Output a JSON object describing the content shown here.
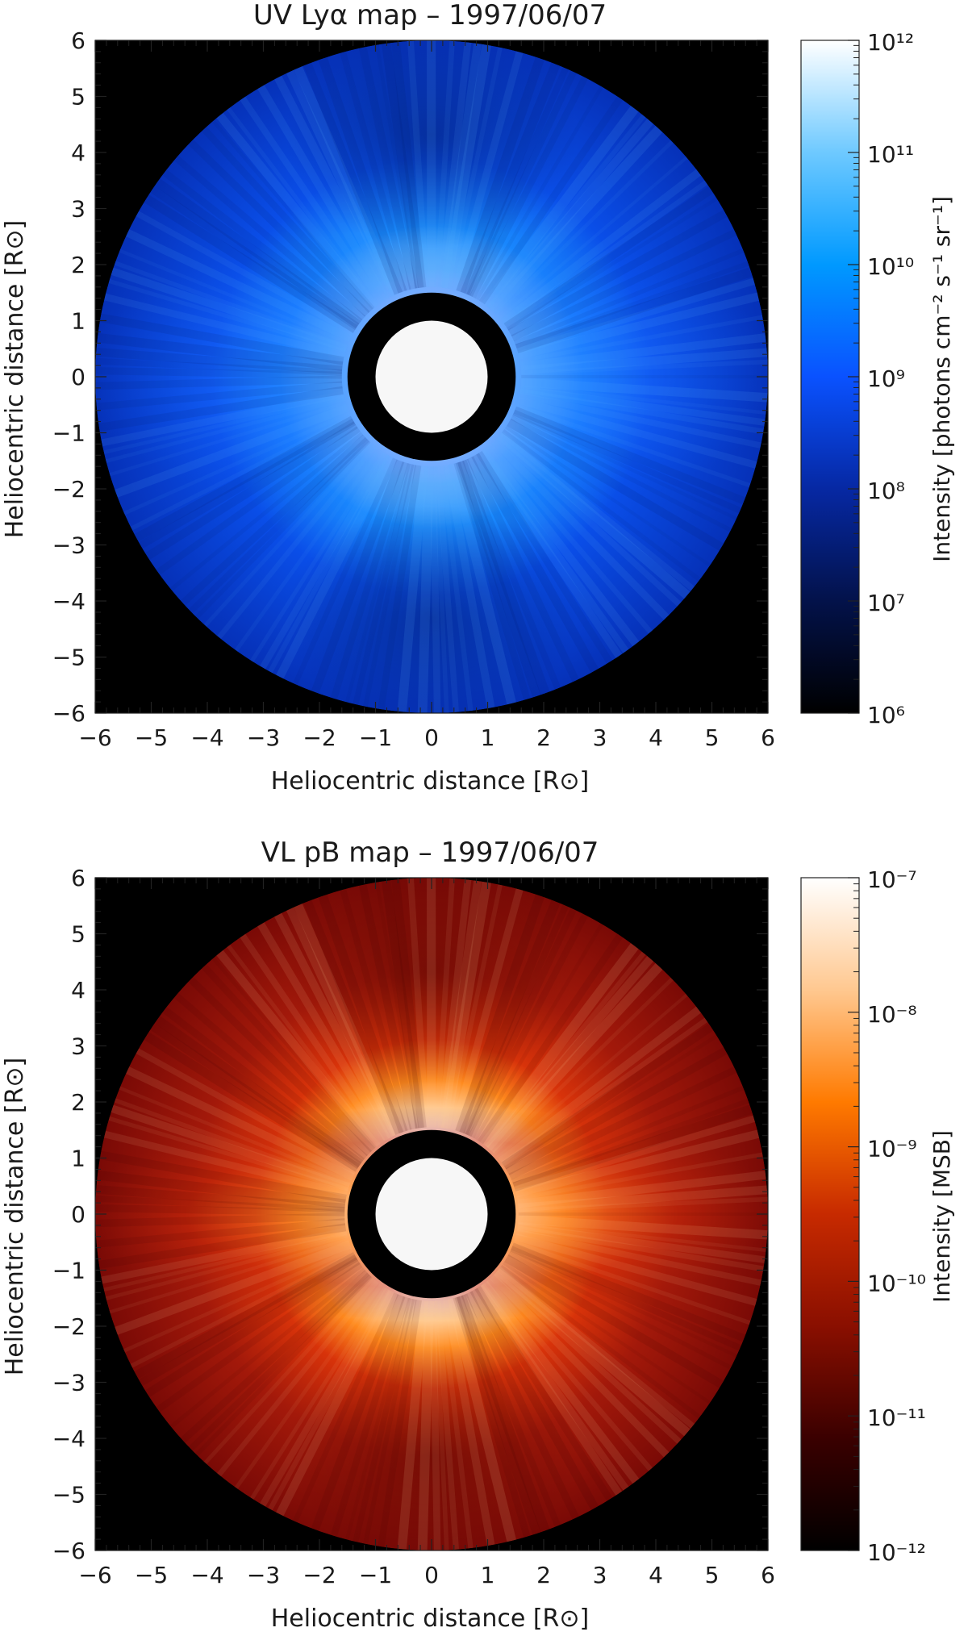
{
  "chart_data": [
    {
      "type": "heatmap",
      "title": "UV Lyα map – 1997/06/07",
      "xlabel": "Heliocentric distance [R⊙]",
      "ylabel": "Heliocentric distance [R⊙]",
      "xlim": [
        -6,
        6
      ],
      "ylim": [
        -6,
        6
      ],
      "xticks": [
        -6,
        -5,
        -4,
        -3,
        -2,
        -1,
        0,
        1,
        2,
        3,
        4,
        5,
        6
      ],
      "yticks": [
        -6,
        -5,
        -4,
        -3,
        -2,
        -1,
        0,
        1,
        2,
        3,
        4,
        5,
        6
      ],
      "disk": {
        "outer_radius": 6.0,
        "occulter_outer_radius": 1.5,
        "sun_radius": 1.0
      },
      "colorbar": {
        "label": "Intensity [photons cm⁻² s⁻¹ sr⁻¹]",
        "scale": "log",
        "range": [
          1000000.0,
          1000000000000.0
        ],
        "tick_exponents": [
          6,
          7,
          8,
          9,
          10,
          11,
          12
        ],
        "tick_base": "10",
        "colors": [
          "#000000",
          "#03124a",
          "#0628a3",
          "#0a52ff",
          "#0099ff",
          "#6ec9ff",
          "#ffffff"
        ]
      }
    },
    {
      "type": "heatmap",
      "title": "VL pB map – 1997/06/07",
      "xlabel": "Heliocentric distance [R⊙]",
      "ylabel": "Heliocentric distance [R⊙]",
      "xlim": [
        -6,
        6
      ],
      "ylim": [
        -6,
        6
      ],
      "xticks": [
        -6,
        -5,
        -4,
        -3,
        -2,
        -1,
        0,
        1,
        2,
        3,
        4,
        5,
        6
      ],
      "yticks": [
        -6,
        -5,
        -4,
        -3,
        -2,
        -1,
        0,
        1,
        2,
        3,
        4,
        5,
        6
      ],
      "disk": {
        "outer_radius": 6.0,
        "occulter_outer_radius": 1.5,
        "sun_radius": 1.0
      },
      "colorbar": {
        "label": "Intensity [MSB]",
        "scale": "log",
        "range": [
          1e-12,
          1e-07
        ],
        "tick_exponents": [
          -12,
          -11,
          -10,
          -9,
          -8,
          -7
        ],
        "tick_base": "10",
        "colors": [
          "#000000",
          "#3a0000",
          "#8a0f00",
          "#c72a00",
          "#ff7a00",
          "#ffc890",
          "#ffffff"
        ]
      }
    }
  ]
}
